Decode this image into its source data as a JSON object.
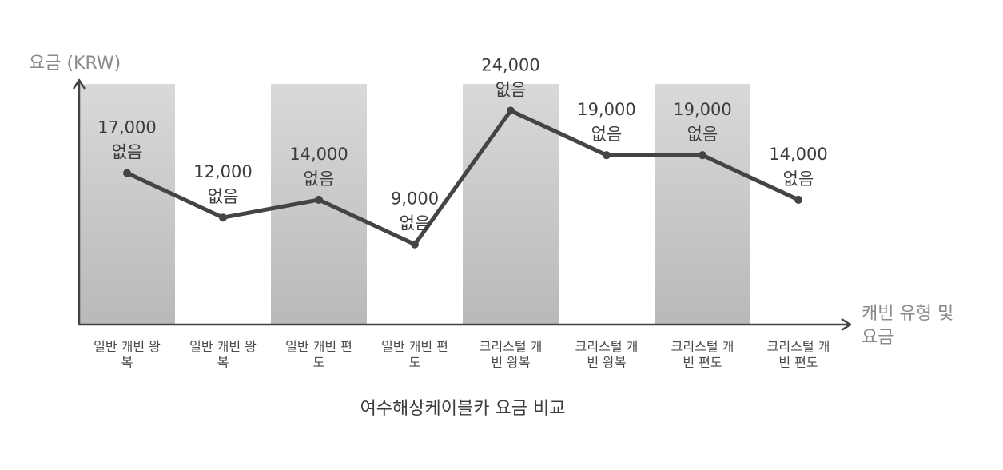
{
  "chart_data": {
    "type": "line",
    "title": "",
    "caption": "여수해상케이블카 요금 비교",
    "ylabel": "요금 (KRW)",
    "xlabel_lines": [
      "캐빈 유형 및",
      "요금"
    ],
    "ylim": [
      0,
      27000
    ],
    "categories": [
      [
        "일반 캐빈 왕",
        "복"
      ],
      [
        "일반 캐빈 왕",
        "복"
      ],
      [
        "일반 캐빈 편",
        "도"
      ],
      [
        "일반 캐빈 편",
        "도"
      ],
      [
        "크리스털 캐",
        "빈 왕복"
      ],
      [
        "크리스털 캐",
        "빈 왕복"
      ],
      [
        "크리스털 캐",
        "빈 편도"
      ],
      [
        "크리스털 캐",
        "빈 편도"
      ]
    ],
    "series": [
      {
        "values": [
          17000,
          12000,
          14000,
          9000,
          24000,
          19000,
          19000,
          14000
        ],
        "labels": [
          [
            "17,000",
            "없음"
          ],
          [
            "12,000",
            "없음"
          ],
          [
            "14,000",
            "없음"
          ],
          [
            "9,000",
            "없음"
          ],
          [
            "24,000",
            "없음"
          ],
          [
            "19,000",
            "없음"
          ],
          [
            "19,000",
            "없음"
          ],
          [
            "14,000",
            "없음"
          ]
        ]
      }
    ],
    "band_categories": [
      0,
      2,
      4,
      6
    ],
    "colors": {
      "line": "#444444",
      "axis": "#444444",
      "band_top": "#d9d9d9",
      "band_bottom": "#b9b9b9"
    }
  }
}
